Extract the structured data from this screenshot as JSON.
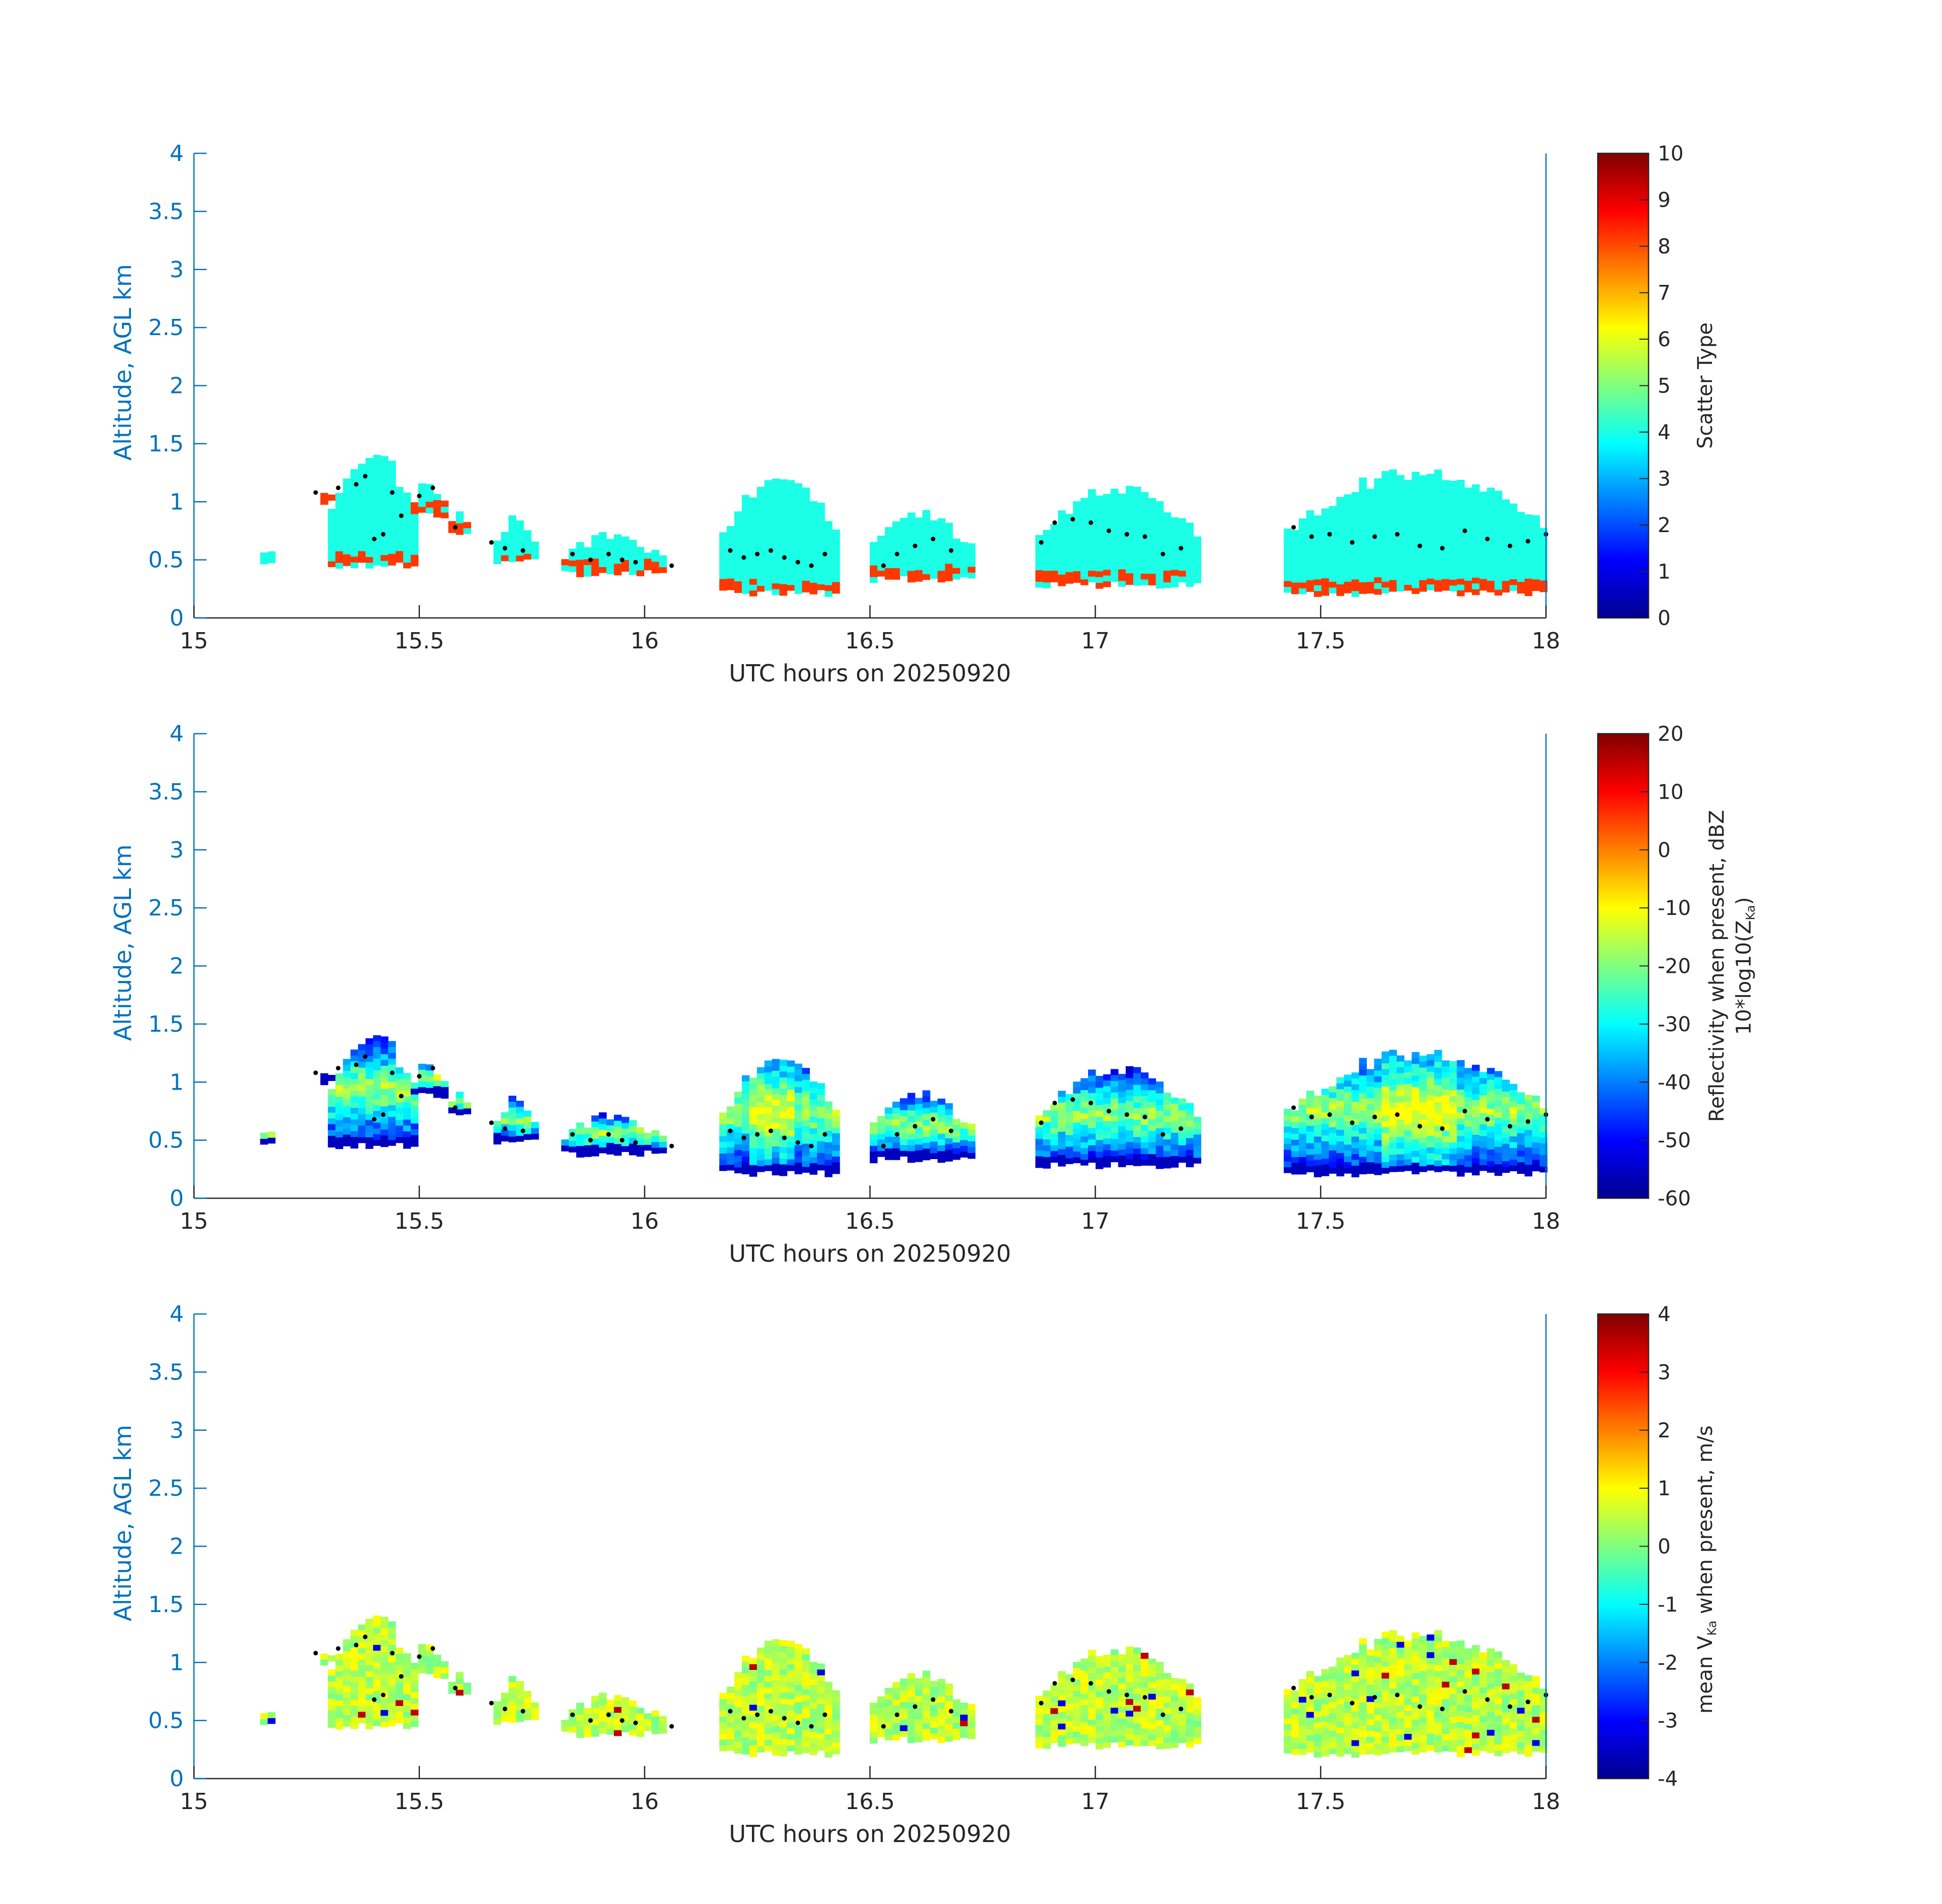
{
  "figure": {
    "colormap": "jet",
    "axis_color": "#0072bd",
    "tick_color": "#262626",
    "mixing_height_marker_color": "#000000"
  },
  "chart_data": [
    {
      "type": "heatmap",
      "title": "",
      "xlabel": "UTC hours on 20250920",
      "ylabel": "Altitude, AGL km",
      "xlim": [
        15,
        18
      ],
      "ylim": [
        0,
        4
      ],
      "xticks": [
        "15",
        "15.5",
        "16",
        "16.5",
        "17",
        "17.5",
        "18"
      ],
      "yticks": [
        "0",
        "0.5",
        "1",
        "1.5",
        "2",
        "2.5",
        "3",
        "3.5",
        "4"
      ],
      "colorbar": {
        "label": "Scatter Type",
        "label2": "",
        "label_sub": "",
        "label_suffix": "",
        "range": [
          0,
          10
        ],
        "ticks": [
          "0",
          "1",
          "2",
          "3",
          "4",
          "5",
          "6",
          "7",
          "8",
          "9",
          "10"
        ]
      },
      "grid": false,
      "cloud_segments": [
        {
          "x": [
            15.14,
            15.17
          ],
          "base": 0.42,
          "top": 0.6
        },
        {
          "x": [
            15.25,
            15.36
          ],
          "base": 0.95,
          "top": 1.12
        },
        {
          "x": [
            15.3,
            15.48
          ],
          "base": 0.42,
          "top": 1.42
        },
        {
          "x": [
            15.48,
            15.55
          ],
          "base": 0.85,
          "top": 1.18
        },
        {
          "x": [
            15.57,
            15.6
          ],
          "base": 0.68,
          "top": 0.92
        },
        {
          "x": [
            15.66,
            15.75
          ],
          "base": 0.45,
          "top": 0.85
        },
        {
          "x": [
            15.82,
            16.03
          ],
          "base": 0.35,
          "top": 0.72
        },
        {
          "x": [
            16.05,
            16.07
          ],
          "base": 0.42,
          "top": 0.48
        },
        {
          "x": [
            16.17,
            16.42
          ],
          "base": 0.18,
          "top": 1.25
        },
        {
          "x": [
            16.5,
            16.71
          ],
          "base": 0.3,
          "top": 0.9
        },
        {
          "x": [
            16.86,
            17.22
          ],
          "base": 0.25,
          "top": 1.12
        },
        {
          "x": [
            17.42,
            18.0
          ],
          "base": 0.18,
          "top": 1.28
        }
      ],
      "mixing_height_points": [
        {
          "x": 15.27,
          "y": 1.08
        },
        {
          "x": 15.32,
          "y": 1.12
        },
        {
          "x": 15.36,
          "y": 1.15
        },
        {
          "x": 15.38,
          "y": 1.22
        },
        {
          "x": 15.4,
          "y": 0.68
        },
        {
          "x": 15.42,
          "y": 0.72
        },
        {
          "x": 15.44,
          "y": 1.08
        },
        {
          "x": 15.46,
          "y": 0.88
        },
        {
          "x": 15.5,
          "y": 1.05
        },
        {
          "x": 15.53,
          "y": 1.12
        },
        {
          "x": 15.58,
          "y": 0.78
        },
        {
          "x": 15.66,
          "y": 0.65
        },
        {
          "x": 15.69,
          "y": 0.6
        },
        {
          "x": 15.73,
          "y": 0.58
        },
        {
          "x": 15.84,
          "y": 0.55
        },
        {
          "x": 15.88,
          "y": 0.5
        },
        {
          "x": 15.92,
          "y": 0.55
        },
        {
          "x": 15.95,
          "y": 0.5
        },
        {
          "x": 15.98,
          "y": 0.48
        },
        {
          "x": 16.06,
          "y": 0.45
        },
        {
          "x": 16.19,
          "y": 0.58
        },
        {
          "x": 16.22,
          "y": 0.52
        },
        {
          "x": 16.25,
          "y": 0.55
        },
        {
          "x": 16.28,
          "y": 0.58
        },
        {
          "x": 16.31,
          "y": 0.52
        },
        {
          "x": 16.34,
          "y": 0.48
        },
        {
          "x": 16.37,
          "y": 0.45
        },
        {
          "x": 16.4,
          "y": 0.55
        },
        {
          "x": 16.53,
          "y": 0.45
        },
        {
          "x": 16.56,
          "y": 0.55
        },
        {
          "x": 16.6,
          "y": 0.62
        },
        {
          "x": 16.64,
          "y": 0.68
        },
        {
          "x": 16.68,
          "y": 0.58
        },
        {
          "x": 16.88,
          "y": 0.65
        },
        {
          "x": 16.91,
          "y": 0.82
        },
        {
          "x": 16.95,
          "y": 0.85
        },
        {
          "x": 16.99,
          "y": 0.82
        },
        {
          "x": 17.03,
          "y": 0.75
        },
        {
          "x": 17.07,
          "y": 0.72
        },
        {
          "x": 17.11,
          "y": 0.7
        },
        {
          "x": 17.15,
          "y": 0.55
        },
        {
          "x": 17.19,
          "y": 0.6
        },
        {
          "x": 17.44,
          "y": 0.78
        },
        {
          "x": 17.48,
          "y": 0.7
        },
        {
          "x": 17.52,
          "y": 0.72
        },
        {
          "x": 17.57,
          "y": 0.65
        },
        {
          "x": 17.62,
          "y": 0.7
        },
        {
          "x": 17.67,
          "y": 0.72
        },
        {
          "x": 17.72,
          "y": 0.62
        },
        {
          "x": 17.77,
          "y": 0.6
        },
        {
          "x": 17.82,
          "y": 0.75
        },
        {
          "x": 17.87,
          "y": 0.68
        },
        {
          "x": 17.92,
          "y": 0.62
        },
        {
          "x": 17.96,
          "y": 0.66
        },
        {
          "x": 18.0,
          "y": 0.72
        }
      ]
    },
    {
      "type": "heatmap",
      "title": "",
      "xlabel": "UTC hours on 20250920",
      "ylabel": "Altitude, AGL km",
      "xlim": [
        15,
        18
      ],
      "ylim": [
        0,
        4
      ],
      "xticks": [
        "15",
        "15.5",
        "16",
        "16.5",
        "17",
        "17.5",
        "18"
      ],
      "yticks": [
        "0",
        "0.5",
        "1",
        "1.5",
        "2",
        "2.5",
        "3",
        "3.5",
        "4"
      ],
      "colorbar": {
        "label": "Reflectivity when present, dBZ",
        "label2": "10*log10(Z",
        "label_sub": "Ka",
        "label_suffix": ")",
        "range": [
          -60,
          20
        ],
        "ticks": [
          "-60",
          "-50",
          "-40",
          "-30",
          "-20",
          "-10",
          "0",
          "10",
          "20"
        ]
      },
      "grid": false,
      "value_range_in_clouds": [
        -55,
        -12
      ]
    },
    {
      "type": "heatmap",
      "title": "",
      "xlabel": "UTC hours on 20250920",
      "ylabel": "Altitude, AGL km",
      "xlim": [
        15,
        18
      ],
      "ylim": [
        0,
        4
      ],
      "xticks": [
        "15",
        "15.5",
        "16",
        "16.5",
        "17",
        "17.5",
        "18"
      ],
      "yticks": [
        "0",
        "0.5",
        "1",
        "1.5",
        "2",
        "2.5",
        "3",
        "3.5",
        "4"
      ],
      "colorbar": {
        "label": "mean V",
        "label2": "",
        "label_sub": "Ka",
        "label_suffix": " when present, m/s",
        "range": [
          -4,
          4
        ],
        "ticks": [
          "-4",
          "-3",
          "-2",
          "-1",
          "0",
          "1",
          "2",
          "3",
          "4"
        ]
      },
      "grid": false,
      "value_range_in_clouds": [
        -1,
        1.5
      ]
    }
  ]
}
